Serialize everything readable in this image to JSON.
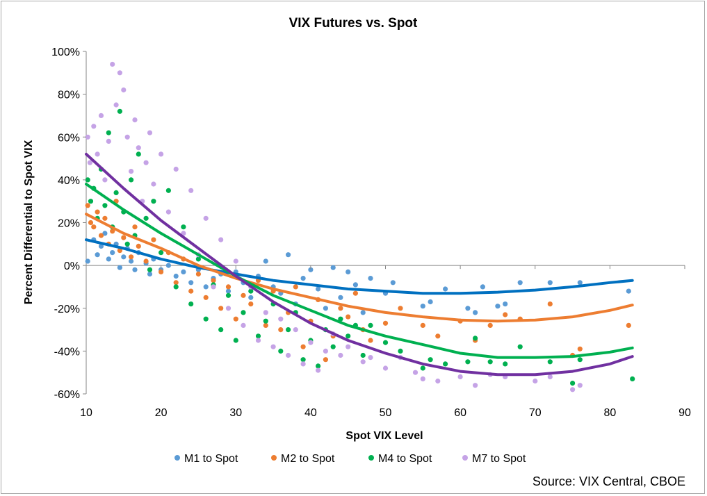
{
  "chart_data": {
    "type": "scatter",
    "title": "VIX Futures vs. Spot",
    "xlabel": "Spot VIX Level",
    "ylabel": "Percent Differential to Spot VIX",
    "xlim": [
      10,
      90
    ],
    "ylim": [
      -60,
      100
    ],
    "x_ticks": [
      "10",
      "20",
      "30",
      "40",
      "50",
      "60",
      "70",
      "80",
      "90"
    ],
    "y_ticks": [
      "100%",
      "80%",
      "60%",
      "40%",
      "20%",
      "0%",
      "-20%",
      "-40%",
      "-60%"
    ],
    "legend_position": "bottom",
    "source": "Source: VIX Central, CBOE",
    "series": [
      {
        "name": "M1 to Spot",
        "color": "#5b9bd5",
        "trend_color": "#0070c0",
        "trendline": "polynomial order 2",
        "trend_points": [
          [
            10,
            12
          ],
          [
            15,
            8
          ],
          [
            20,
            3
          ],
          [
            25,
            -1
          ],
          [
            30,
            -4
          ],
          [
            35,
            -7
          ],
          [
            40,
            -9
          ],
          [
            45,
            -11
          ],
          [
            50,
            -12
          ],
          [
            55,
            -13
          ],
          [
            60,
            -13
          ],
          [
            65,
            -12.5
          ],
          [
            70,
            -11.5
          ],
          [
            75,
            -10
          ],
          [
            80,
            -8
          ],
          [
            83,
            -7
          ]
        ],
        "points": [
          [
            10.2,
            2
          ],
          [
            11,
            12
          ],
          [
            11.5,
            5
          ],
          [
            12,
            9
          ],
          [
            12.5,
            15
          ],
          [
            13,
            3
          ],
          [
            13.5,
            6
          ],
          [
            14,
            10
          ],
          [
            14.5,
            -1
          ],
          [
            15,
            4
          ],
          [
            15.5,
            8
          ],
          [
            16,
            2
          ],
          [
            16.5,
            -2
          ],
          [
            17,
            6
          ],
          [
            18,
            1
          ],
          [
            18.5,
            -4
          ],
          [
            19,
            3
          ],
          [
            20,
            -2
          ],
          [
            21,
            0
          ],
          [
            22,
            -5
          ],
          [
            23,
            -3
          ],
          [
            24,
            -8
          ],
          [
            25,
            -2
          ],
          [
            26,
            -10
          ],
          [
            27,
            -6
          ],
          [
            28,
            -4
          ],
          [
            29,
            -12
          ],
          [
            30,
            -3
          ],
          [
            31,
            -8
          ],
          [
            32,
            -15
          ],
          [
            33,
            -5
          ],
          [
            34,
            2
          ],
          [
            35,
            -10
          ],
          [
            36,
            -13
          ],
          [
            37,
            5
          ],
          [
            38,
            -18
          ],
          [
            39,
            -6
          ],
          [
            40,
            -2
          ],
          [
            41,
            -11
          ],
          [
            42,
            -20
          ],
          [
            43,
            -1
          ],
          [
            44,
            -15
          ],
          [
            45,
            -3
          ],
          [
            46,
            -9
          ],
          [
            47,
            -22
          ],
          [
            48,
            -6
          ],
          [
            50,
            -13
          ],
          [
            51,
            -8
          ],
          [
            55,
            -19
          ],
          [
            56,
            -17
          ],
          [
            58,
            -11
          ],
          [
            61,
            -20
          ],
          [
            62,
            -22
          ],
          [
            63,
            -10
          ],
          [
            65,
            -19
          ],
          [
            66,
            -18
          ],
          [
            68,
            -8
          ],
          [
            72,
            -8
          ],
          [
            76,
            -8
          ],
          [
            82.5,
            -12
          ]
        ]
      },
      {
        "name": "M2 to Spot",
        "color": "#ed7d31",
        "trend_color": "#ed7d31",
        "trendline": "polynomial order 2",
        "trend_points": [
          [
            10,
            24
          ],
          [
            15,
            15
          ],
          [
            20,
            8
          ],
          [
            25,
            0
          ],
          [
            30,
            -6
          ],
          [
            35,
            -11
          ],
          [
            40,
            -15
          ],
          [
            45,
            -19
          ],
          [
            50,
            -22
          ],
          [
            55,
            -24
          ],
          [
            60,
            -25.5
          ],
          [
            65,
            -26
          ],
          [
            70,
            -25.5
          ],
          [
            75,
            -24
          ],
          [
            80,
            -21
          ],
          [
            83,
            -18.5
          ]
        ],
        "points": [
          [
            10.2,
            28
          ],
          [
            10.6,
            20
          ],
          [
            11,
            18
          ],
          [
            11.5,
            25
          ],
          [
            12,
            14
          ],
          [
            12.5,
            22
          ],
          [
            13,
            10
          ],
          [
            13.5,
            16
          ],
          [
            14,
            30
          ],
          [
            14.5,
            7
          ],
          [
            15,
            13
          ],
          [
            16,
            4
          ],
          [
            16.5,
            18
          ],
          [
            17,
            9
          ],
          [
            18,
            2
          ],
          [
            19,
            12
          ],
          [
            20,
            -3
          ],
          [
            21,
            6
          ],
          [
            22,
            -8
          ],
          [
            23,
            3
          ],
          [
            24,
            -12
          ],
          [
            25,
            -4
          ],
          [
            26,
            -15
          ],
          [
            27,
            -7
          ],
          [
            28,
            -20
          ],
          [
            29,
            -10
          ],
          [
            30,
            -25
          ],
          [
            31,
            -14
          ],
          [
            32,
            -18
          ],
          [
            33,
            -7
          ],
          [
            34,
            -28
          ],
          [
            35,
            -12
          ],
          [
            36,
            -30
          ],
          [
            37,
            -22
          ],
          [
            38,
            -10
          ],
          [
            39,
            -38
          ],
          [
            40,
            -26
          ],
          [
            41,
            -16
          ],
          [
            42,
            -44
          ],
          [
            43,
            -33
          ],
          [
            44,
            -20
          ],
          [
            45,
            -24
          ],
          [
            46,
            -13
          ],
          [
            47,
            -30
          ],
          [
            48,
            -35
          ],
          [
            50,
            -27
          ],
          [
            52,
            -20
          ],
          [
            55,
            -28
          ],
          [
            57,
            -33
          ],
          [
            60,
            -26
          ],
          [
            62,
            -35
          ],
          [
            64,
            -28
          ],
          [
            66,
            -23
          ],
          [
            68,
            -25
          ],
          [
            72,
            -18
          ],
          [
            75,
            -42
          ],
          [
            76,
            -39
          ],
          [
            82.5,
            -28
          ]
        ]
      },
      {
        "name": "M4 to Spot",
        "color": "#00b050",
        "trend_color": "#00b050",
        "trendline": "polynomial order 2",
        "trend_points": [
          [
            10,
            38
          ],
          [
            15,
            26
          ],
          [
            20,
            15
          ],
          [
            25,
            5
          ],
          [
            30,
            -5
          ],
          [
            35,
            -14
          ],
          [
            40,
            -21
          ],
          [
            45,
            -28
          ],
          [
            50,
            -33
          ],
          [
            55,
            -37
          ],
          [
            60,
            -41
          ],
          [
            65,
            -43
          ],
          [
            70,
            -43
          ],
          [
            75,
            -42.5
          ],
          [
            80,
            -40.5
          ],
          [
            83,
            -38.5
          ]
        ],
        "points": [
          [
            10.2,
            40
          ],
          [
            10.6,
            30
          ],
          [
            11,
            36
          ],
          [
            11.5,
            22
          ],
          [
            12,
            45
          ],
          [
            12.5,
            28
          ],
          [
            13,
            62
          ],
          [
            13.5,
            18
          ],
          [
            14,
            34
          ],
          [
            14.5,
            72
          ],
          [
            15,
            25
          ],
          [
            15.5,
            10
          ],
          [
            16,
            40
          ],
          [
            16.5,
            14
          ],
          [
            17,
            52
          ],
          [
            18,
            22
          ],
          [
            18.5,
            -2
          ],
          [
            19,
            30
          ],
          [
            20,
            6
          ],
          [
            21,
            35
          ],
          [
            22,
            -10
          ],
          [
            23,
            18
          ],
          [
            24,
            -18
          ],
          [
            25,
            3
          ],
          [
            26,
            -25
          ],
          [
            27,
            -9
          ],
          [
            28,
            -30
          ],
          [
            29,
            -14
          ],
          [
            30,
            -35
          ],
          [
            31,
            -22
          ],
          [
            32,
            -12
          ],
          [
            33,
            -33
          ],
          [
            34,
            -26
          ],
          [
            35,
            -18
          ],
          [
            36,
            -40
          ],
          [
            37,
            -30
          ],
          [
            38,
            -22
          ],
          [
            39,
            -44
          ],
          [
            40,
            -35
          ],
          [
            41,
            -47
          ],
          [
            42,
            -30
          ],
          [
            43,
            -38
          ],
          [
            44,
            -25
          ],
          [
            45,
            -33
          ],
          [
            46,
            -28
          ],
          [
            47,
            -42
          ],
          [
            48,
            -28
          ],
          [
            50,
            -36
          ],
          [
            52,
            -40
          ],
          [
            55,
            -48
          ],
          [
            56,
            -44
          ],
          [
            58,
            -46
          ],
          [
            61,
            -45
          ],
          [
            62,
            -34
          ],
          [
            64,
            -45
          ],
          [
            66,
            -46
          ],
          [
            68,
            -38
          ],
          [
            72,
            -45
          ],
          [
            75,
            -55
          ],
          [
            76,
            -44
          ],
          [
            83,
            -53
          ]
        ]
      },
      {
        "name": "M7 to Spot",
        "color": "#c5a3e6",
        "trend_color": "#7030a0",
        "trendline": "polynomial order 2",
        "trend_points": [
          [
            10,
            52
          ],
          [
            15,
            36
          ],
          [
            20,
            21
          ],
          [
            25,
            8
          ],
          [
            30,
            -5
          ],
          [
            35,
            -17
          ],
          [
            40,
            -27
          ],
          [
            45,
            -35
          ],
          [
            50,
            -41
          ],
          [
            55,
            -46
          ],
          [
            60,
            -49.5
          ],
          [
            65,
            -51
          ],
          [
            70,
            -51
          ],
          [
            75,
            -49.5
          ],
          [
            80,
            -46
          ],
          [
            83,
            -42.5
          ]
        ],
        "points": [
          [
            10.2,
            60
          ],
          [
            10.5,
            48
          ],
          [
            11,
            65
          ],
          [
            11.5,
            52
          ],
          [
            12,
            70
          ],
          [
            12.5,
            40
          ],
          [
            13,
            58
          ],
          [
            13.5,
            94
          ],
          [
            14,
            75
          ],
          [
            14.5,
            90
          ],
          [
            15,
            82
          ],
          [
            15.5,
            60
          ],
          [
            16,
            44
          ],
          [
            16.5,
            68
          ],
          [
            17,
            55
          ],
          [
            17.5,
            30
          ],
          [
            18,
            48
          ],
          [
            18.5,
            62
          ],
          [
            19,
            38
          ],
          [
            20,
            52
          ],
          [
            21,
            25
          ],
          [
            22,
            45
          ],
          [
            23,
            15
          ],
          [
            24,
            35
          ],
          [
            25,
            5
          ],
          [
            26,
            22
          ],
          [
            27,
            -10
          ],
          [
            28,
            12
          ],
          [
            29,
            -20
          ],
          [
            30,
            2
          ],
          [
            31,
            -28
          ],
          [
            32,
            -10
          ],
          [
            33,
            -35
          ],
          [
            34,
            -22
          ],
          [
            35,
            -38
          ],
          [
            36,
            -25
          ],
          [
            37,
            -42
          ],
          [
            38,
            -30
          ],
          [
            39,
            -46
          ],
          [
            40,
            -36
          ],
          [
            41,
            -49
          ],
          [
            42,
            -40
          ],
          [
            43,
            -32
          ],
          [
            44,
            -42
          ],
          [
            45,
            -38
          ],
          [
            47,
            -45
          ],
          [
            48,
            -43
          ],
          [
            50,
            -48
          ],
          [
            52,
            -43
          ],
          [
            54,
            -50
          ],
          [
            55,
            -53
          ],
          [
            57,
            -54
          ],
          [
            60,
            -52
          ],
          [
            62,
            -56
          ],
          [
            64,
            -51
          ],
          [
            66,
            -52
          ],
          [
            70,
            -54
          ],
          [
            72,
            -52
          ],
          [
            75,
            -58
          ],
          [
            76,
            -56
          ]
        ]
      }
    ]
  }
}
